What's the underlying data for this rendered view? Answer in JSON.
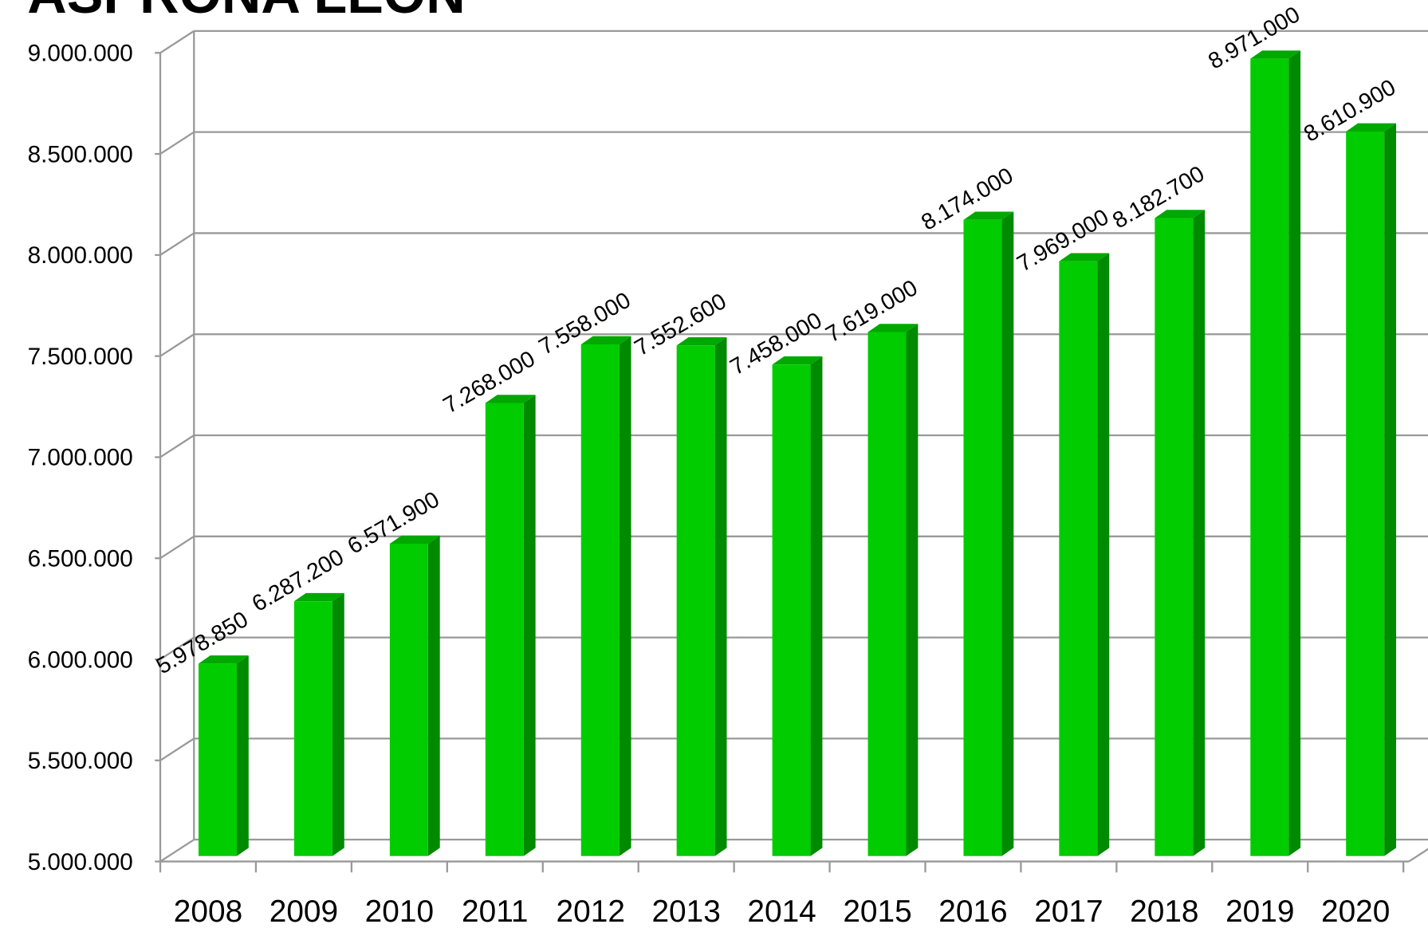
{
  "chart_data": {
    "type": "bar3d",
    "title": "ASPRONA LEÓN",
    "categories": [
      "2008",
      "2009",
      "2010",
      "2011",
      "2012",
      "2013",
      "2014",
      "2015",
      "2016",
      "2017",
      "2018",
      "2019",
      "2020"
    ],
    "values": [
      5978850,
      6287200,
      6571900,
      7268000,
      7558000,
      7552600,
      7458000,
      7619000,
      8174000,
      7969000,
      8182700,
      8971000,
      8610900
    ],
    "value_labels": [
      "5.978.850",
      "6.287.200",
      "6.571.900",
      "7.268.000",
      "7.558.000",
      "7.552.600",
      "7.458.000",
      "7.619.000",
      "8.174.000",
      "7.969.000",
      "8.182.700",
      "8.971.000",
      "8.610.900"
    ],
    "color": "#00cc00",
    "ylim": [
      5000000,
      9000000
    ],
    "yticks": [
      {
        "value": 5000000,
        "label": "5.000.000"
      },
      {
        "value": 5500000,
        "label": "5.500.000"
      },
      {
        "value": 6000000,
        "label": "6.000.000"
      },
      {
        "value": 6500000,
        "label": "6.500.000"
      },
      {
        "value": 7000000,
        "label": "7.000.000"
      },
      {
        "value": 7500000,
        "label": "7.500.000"
      },
      {
        "value": 8000000,
        "label": "8.000.000"
      },
      {
        "value": 8500000,
        "label": "8.500.000"
      },
      {
        "value": 9000000,
        "label": "9.000.000"
      }
    ],
    "grid": true
  }
}
